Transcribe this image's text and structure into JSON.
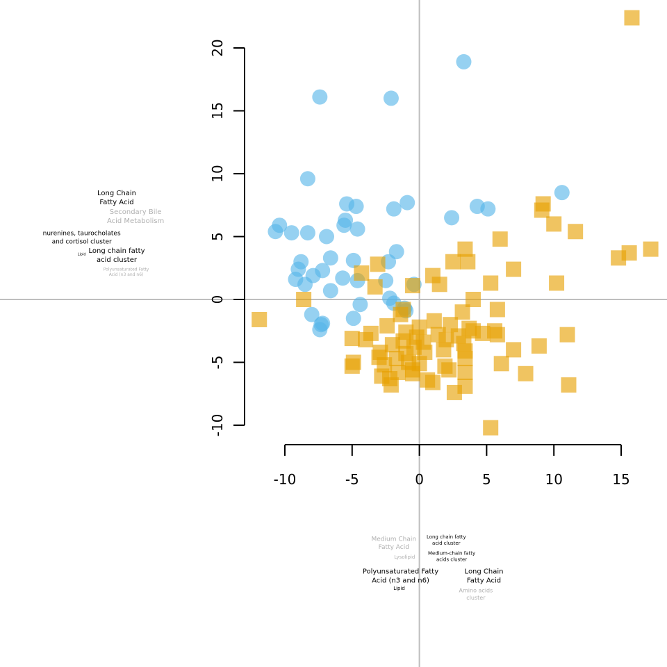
{
  "chart_data": {
    "type": "scatter",
    "title": "",
    "xlabel": "",
    "ylabel": "",
    "xlim": [
      -13,
      18.5
    ],
    "ylim": [
      -11,
      23
    ],
    "x_ticks": [
      -10,
      -5,
      0,
      5,
      10,
      15
    ],
    "y_ticks": [
      -10,
      -5,
      0,
      5,
      10,
      15,
      20
    ],
    "x_tick_labels": [
      "-10",
      "-5",
      "0",
      "5",
      "10",
      "15"
    ],
    "y_tick_labels": [
      "-10",
      "-5",
      "0",
      "5",
      "10",
      "15",
      "20"
    ],
    "reference_lines": {
      "x": 0,
      "y": 0,
      "color": "#bebebe"
    },
    "grid": false,
    "legend": "none",
    "series": [
      {
        "marker": "circle",
        "color": "#56B4E9",
        "points": [
          [
            -7.4,
            16.1
          ],
          [
            -2.1,
            16.0
          ],
          [
            3.3,
            18.9
          ],
          [
            -8.3,
            9.6
          ],
          [
            10.6,
            8.5
          ],
          [
            -5.4,
            7.6
          ],
          [
            -4.7,
            7.4
          ],
          [
            -1.9,
            7.2
          ],
          [
            -0.9,
            7.7
          ],
          [
            4.3,
            7.4
          ],
          [
            5.1,
            7.2
          ],
          [
            2.4,
            6.5
          ],
          [
            -10.4,
            5.9
          ],
          [
            -10.7,
            5.4
          ],
          [
            -9.5,
            5.3
          ],
          [
            -8.3,
            5.3
          ],
          [
            -5.5,
            6.3
          ],
          [
            -5.6,
            5.9
          ],
          [
            -4.6,
            5.6
          ],
          [
            -6.9,
            5.0
          ],
          [
            -1.7,
            3.8
          ],
          [
            -6.6,
            3.3
          ],
          [
            -4.9,
            3.1
          ],
          [
            -2.3,
            3.0
          ],
          [
            -8.8,
            3.0
          ],
          [
            -9.0,
            2.4
          ],
          [
            -7.2,
            2.3
          ],
          [
            -7.9,
            1.9
          ],
          [
            -9.2,
            1.6
          ],
          [
            -5.7,
            1.7
          ],
          [
            -4.6,
            1.5
          ],
          [
            -2.5,
            1.5
          ],
          [
            -8.5,
            1.2
          ],
          [
            -0.4,
            1.2
          ],
          [
            -6.6,
            0.7
          ],
          [
            -2.2,
            0.1
          ],
          [
            -1.9,
            -0.3
          ],
          [
            -4.4,
            -0.4
          ],
          [
            -1.1,
            -0.7
          ],
          [
            -1.0,
            -0.9
          ],
          [
            -8.0,
            -1.2
          ],
          [
            -4.9,
            -1.5
          ],
          [
            -7.2,
            -1.9
          ],
          [
            -7.3,
            -2.0
          ],
          [
            -7.4,
            -2.4
          ]
        ]
      },
      {
        "marker": "square",
        "color": "#E69F00",
        "points": [
          [
            15.8,
            22.4
          ],
          [
            9.2,
            7.6
          ],
          [
            9.1,
            7.1
          ],
          [
            10.0,
            6.0
          ],
          [
            11.6,
            5.4
          ],
          [
            6.0,
            4.8
          ],
          [
            3.4,
            4.0
          ],
          [
            15.6,
            3.7
          ],
          [
            17.2,
            4.0
          ],
          [
            14.8,
            3.3
          ],
          [
            7.0,
            2.4
          ],
          [
            2.5,
            3.0
          ],
          [
            3.6,
            3.0
          ],
          [
            -3.1,
            2.8
          ],
          [
            -4.3,
            2.1
          ],
          [
            1.0,
            1.9
          ],
          [
            1.5,
            1.2
          ],
          [
            5.3,
            1.3
          ],
          [
            10.2,
            1.3
          ],
          [
            -0.5,
            1.1
          ],
          [
            -3.3,
            1.0
          ],
          [
            -8.6,
            0.0
          ],
          [
            4.0,
            0.0
          ],
          [
            3.2,
            -1.0
          ],
          [
            5.8,
            -0.8
          ],
          [
            -1.2,
            -0.8
          ],
          [
            -1.4,
            -1.2
          ],
          [
            -11.9,
            -1.6
          ],
          [
            1.1,
            -1.7
          ],
          [
            2.3,
            -2.0
          ],
          [
            -2.4,
            -2.1
          ],
          [
            0.0,
            -2.2
          ],
          [
            3.7,
            -2.3
          ],
          [
            4.0,
            -2.5
          ],
          [
            5.6,
            -2.5
          ],
          [
            -1.0,
            -2.6
          ],
          [
            4.7,
            -2.7
          ],
          [
            5.8,
            -2.8
          ],
          [
            11.0,
            -2.8
          ],
          [
            -3.6,
            -2.7
          ],
          [
            1.4,
            -2.8
          ],
          [
            2.9,
            -2.9
          ],
          [
            -0.2,
            -3.0
          ],
          [
            -5.0,
            -3.1
          ],
          [
            -4.0,
            -3.2
          ],
          [
            -1.2,
            -3.3
          ],
          [
            0.3,
            -3.4
          ],
          [
            2.0,
            -3.2
          ],
          [
            3.3,
            -3.5
          ],
          [
            8.9,
            -3.7
          ],
          [
            -2.0,
            -3.6
          ],
          [
            -0.4,
            -3.8
          ],
          [
            1.8,
            -4.0
          ],
          [
            3.4,
            -4.1
          ],
          [
            7.0,
            -4.0
          ],
          [
            -2.9,
            -4.2
          ],
          [
            -1.0,
            -4.3
          ],
          [
            0.4,
            -4.2
          ],
          [
            -3.0,
            -4.6
          ],
          [
            -1.7,
            -4.7
          ],
          [
            3.4,
            -4.7
          ],
          [
            -4.9,
            -5.0
          ],
          [
            -5.0,
            -5.3
          ],
          [
            -0.8,
            -5.0
          ],
          [
            -2.6,
            -5.2
          ],
          [
            0.0,
            -5.1
          ],
          [
            1.9,
            -5.3
          ],
          [
            6.1,
            -5.1
          ],
          [
            -0.5,
            -5.6
          ],
          [
            2.2,
            -5.6
          ],
          [
            -1.6,
            -5.8
          ],
          [
            3.4,
            -5.8
          ],
          [
            -2.8,
            -6.1
          ],
          [
            -2.2,
            -6.3
          ],
          [
            -0.5,
            -5.9
          ],
          [
            7.9,
            -5.9
          ],
          [
            0.6,
            -6.4
          ],
          [
            1.0,
            -6.6
          ],
          [
            -2.1,
            -6.8
          ],
          [
            3.4,
            -6.9
          ],
          [
            2.6,
            -7.4
          ],
          [
            11.1,
            -6.8
          ],
          [
            5.3,
            -10.2
          ]
        ]
      }
    ],
    "annotations": [
      {
        "lines": [
          "Long Chain",
          "Fatty Acid"
        ],
        "color": "#000000",
        "size": 10,
        "x": -22.5,
        "y": 8.3
      },
      {
        "lines": [
          "Secondary Bile",
          "Acid Metabolism"
        ],
        "color": "#b0b0b0",
        "size": 10,
        "x": -21.1,
        "y": 6.8
      },
      {
        "lines": [
          "nurenines, taurocholates",
          "and cortisol cluster"
        ],
        "color": "#000000",
        "size": 9,
        "x": -25.1,
        "y": 5.1
      },
      {
        "lines": [
          "Long chain fatty",
          "acid cluster"
        ],
        "color": "#000000",
        "size": 10,
        "x": -22.5,
        "y": 3.7
      },
      {
        "lines": [
          "Lipid"
        ],
        "color": "#000000",
        "size": 5,
        "x": -25.1,
        "y": 3.5
      },
      {
        "lines": [
          "Polyunsaturated Fatty",
          "Acid (n3 and n6)"
        ],
        "color": "#b0b0b0",
        "size": 6,
        "x": -21.8,
        "y": 2.3
      },
      {
        "lines": [
          "Medium Chain",
          "Fatty Acid"
        ],
        "color": "#b0b0b0",
        "size": 9,
        "x": -1.9,
        "y": -19.2
      },
      {
        "lines": [
          "Lysolipid"
        ],
        "color": "#b0b0b0",
        "size": 7,
        "x": -1.1,
        "y": -20.6
      },
      {
        "lines": [
          "Long chain fatty",
          "acid cluster"
        ],
        "color": "#000000",
        "size": 7,
        "x": 2.0,
        "y": -19.0
      },
      {
        "lines": [
          "Medium-chain fatty",
          "acids cluster"
        ],
        "color": "#000000",
        "size": 7,
        "x": 2.4,
        "y": -20.3
      },
      {
        "lines": [
          "Polyunsaturated Fatty",
          "Acid (n3 and n6)"
        ],
        "color": "#000000",
        "size": 10,
        "x": -1.4,
        "y": -21.8
      },
      {
        "lines": [
          "Lipid"
        ],
        "color": "#000000",
        "size": 7,
        "x": -1.5,
        "y": -23.1
      },
      {
        "lines": [
          "Long Chain",
          "Fatty Acid"
        ],
        "color": "#000000",
        "size": 10,
        "x": 4.8,
        "y": -21.8
      },
      {
        "lines": [
          "Amino acids",
          "cluster"
        ],
        "color": "#b0b0b0",
        "size": 8,
        "x": 4.2,
        "y": -23.3
      }
    ]
  }
}
